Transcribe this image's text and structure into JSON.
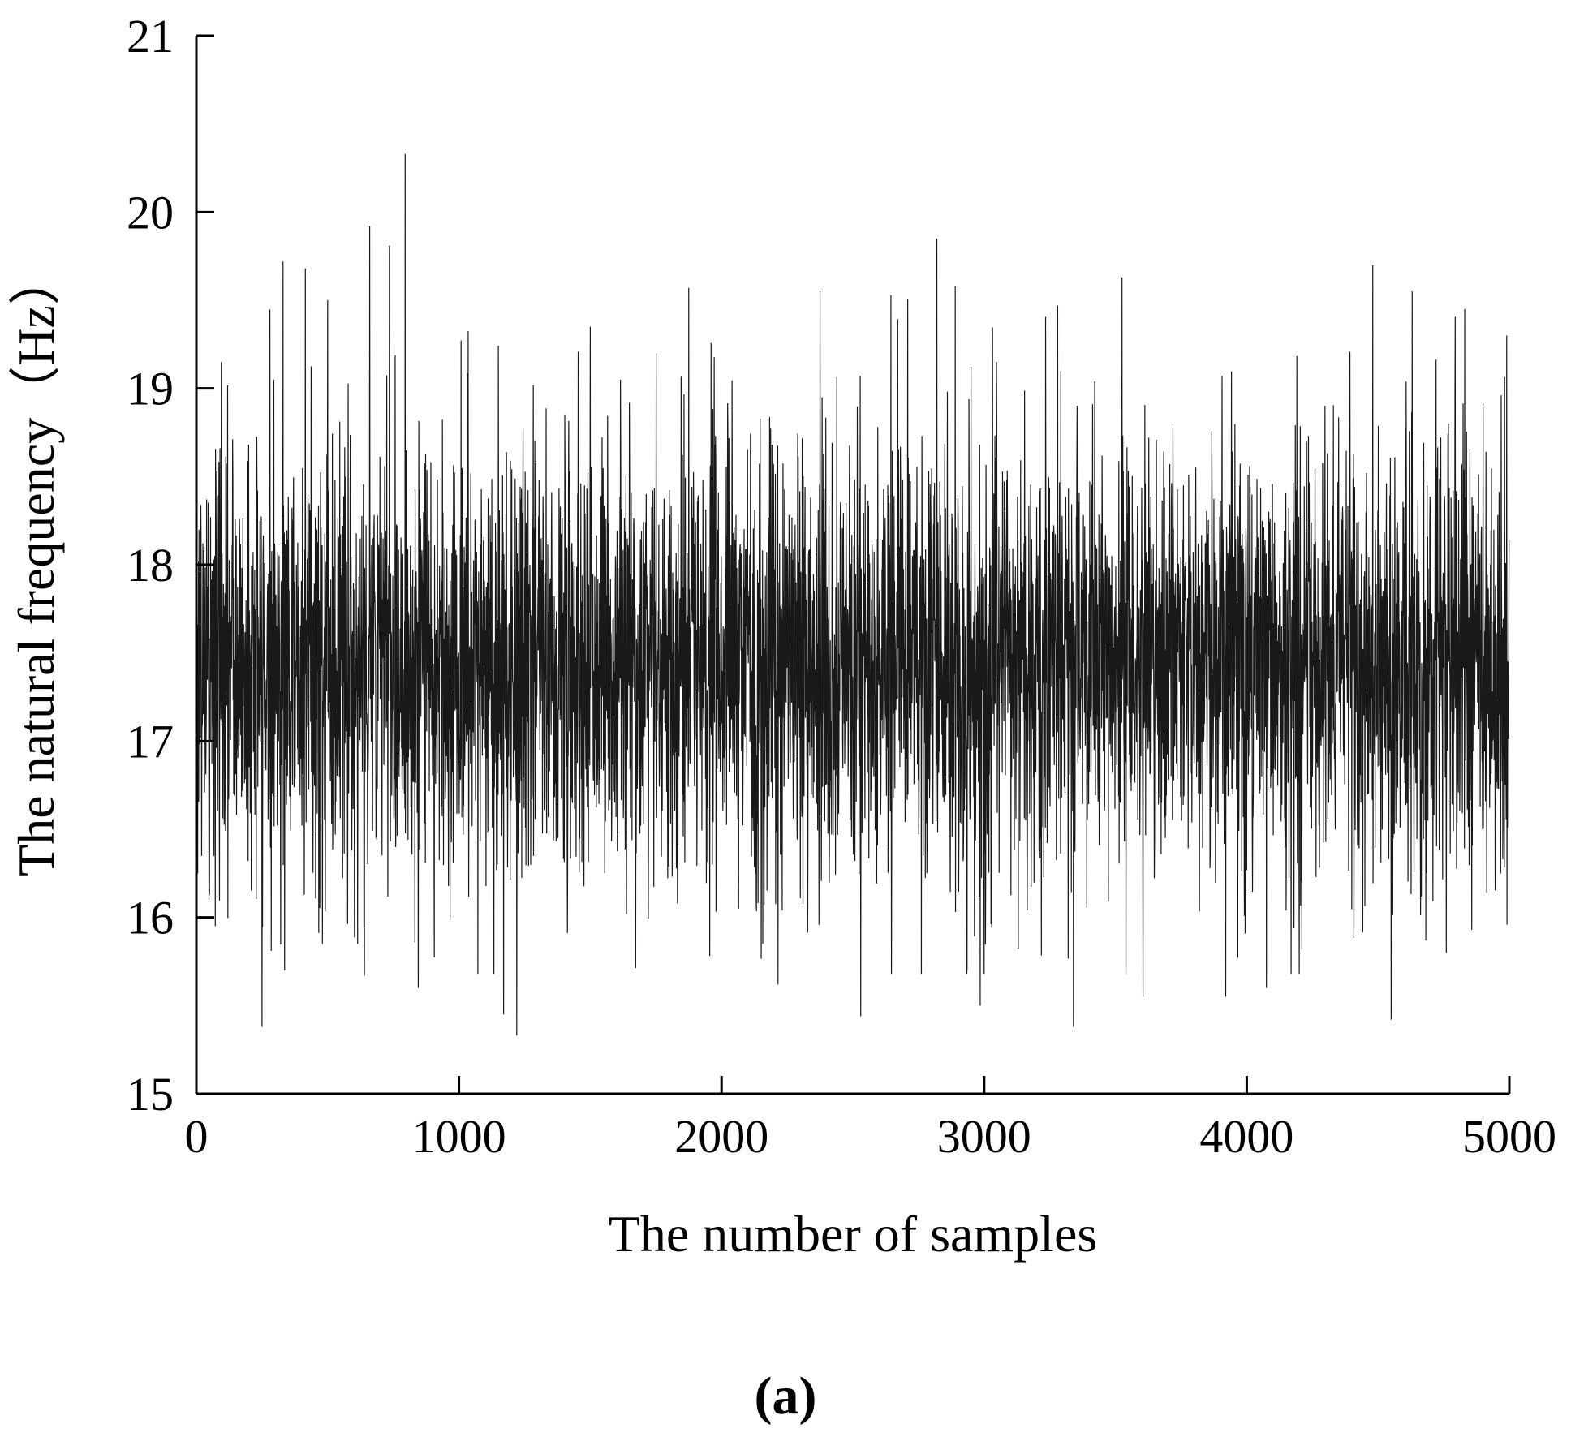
{
  "chart_data": {
    "type": "line",
    "title": "",
    "xlabel": "The number of samples",
    "ylabel": "The natural frequency（Hz）",
    "xlim": [
      0,
      5000
    ],
    "ylim": [
      15,
      21
    ],
    "x_ticks": [
      0,
      1000,
      2000,
      3000,
      4000,
      5000
    ],
    "y_ticks": [
      15,
      16,
      17,
      18,
      19,
      20,
      21
    ],
    "grid": false,
    "legend": "none",
    "line_color": "#000000",
    "series": [
      {
        "n_samples": 5000,
        "mean": 17.45,
        "std": 0.62,
        "min": 15.33,
        "max": 20.33,
        "extremes": [
          [
            48,
            16.1
          ],
          [
            95,
            19.15
          ],
          [
            250,
            15.38
          ],
          [
            330,
            19.72
          ],
          [
            415,
            19.68
          ],
          [
            480,
            15.85
          ],
          [
            500,
            19.5
          ],
          [
            640,
            15.67
          ],
          [
            660,
            19.92
          ],
          [
            735,
            19.81
          ],
          [
            795,
            20.33
          ],
          [
            845,
            15.6
          ],
          [
            1170,
            15.45
          ],
          [
            1220,
            15.33
          ],
          [
            1500,
            19.35
          ],
          [
            1875,
            19.57
          ],
          [
            2065,
            16.05
          ],
          [
            2215,
            15.62
          ],
          [
            2375,
            19.55
          ],
          [
            2530,
            15.44
          ],
          [
            2645,
            19.53
          ],
          [
            2820,
            19.85
          ],
          [
            2890,
            19.58
          ],
          [
            2985,
            15.5
          ],
          [
            3280,
            19.47
          ],
          [
            3340,
            15.38
          ],
          [
            3525,
            19.63
          ],
          [
            3605,
            15.55
          ],
          [
            3920,
            15.55
          ],
          [
            4075,
            15.6
          ],
          [
            4480,
            19.7
          ],
          [
            4550,
            15.42
          ],
          [
            4630,
            19.55
          ],
          [
            4760,
            15.8
          ],
          [
            4830,
            19.45
          ],
          [
            4990,
            19.3
          ]
        ]
      }
    ]
  },
  "panel_label": "(a)"
}
